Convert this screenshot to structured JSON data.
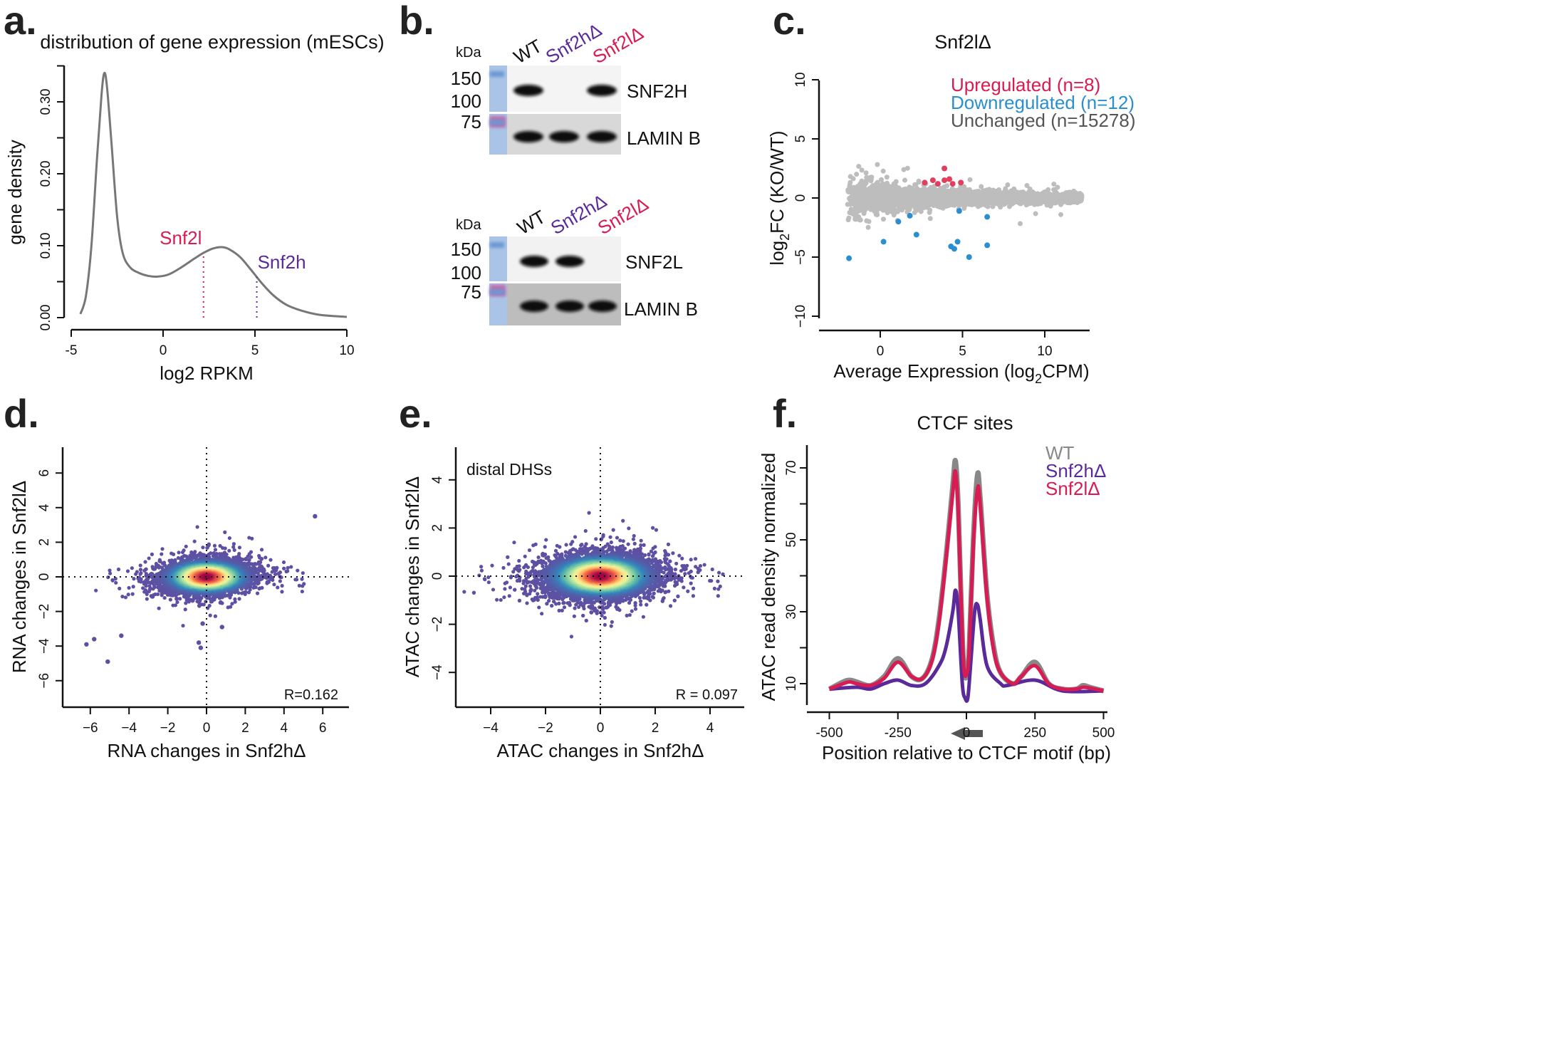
{
  "panels": {
    "a": {
      "letter": "a."
    },
    "b": {
      "letter": "b."
    },
    "c": {
      "letter": "c."
    },
    "d": {
      "letter": "d."
    },
    "e": {
      "letter": "e."
    },
    "f": {
      "letter": "f."
    }
  },
  "colors": {
    "snf2l": "#d81b52",
    "snf2h": "#5b2a9a",
    "down": "#2a8fd0",
    "unchanged": "#bdbdbd",
    "wt": "#888888"
  },
  "blots": {
    "unit_label": "kDa",
    "markers": [
      "150",
      "100",
      "75"
    ],
    "lanes": [
      "WT",
      "Snf2hΔ",
      "Snf2lΔ"
    ],
    "top": {
      "bands": [
        "SNF2H",
        "LAMIN B"
      ],
      "presence": [
        [
          1,
          0,
          1
        ],
        [
          1,
          1,
          1
        ]
      ]
    },
    "bottom": {
      "bands": [
        "SNF2L",
        "LAMIN B"
      ],
      "presence": [
        [
          1,
          1,
          0
        ],
        [
          1,
          1,
          1
        ]
      ]
    }
  },
  "chart_data": [
    {
      "id": "a",
      "type": "line",
      "title": "distribution of gene expression (mESCs)",
      "xlabel": "log2 RPKM",
      "ylabel": "gene density",
      "xlim": [
        -5,
        10
      ],
      "ylim": [
        0,
        0.35
      ],
      "xticks": [
        "-5",
        "0",
        "5",
        "10"
      ],
      "yticks": [
        "0.00",
        "0.10",
        "0.20",
        "0.30"
      ],
      "x": [
        -4.5,
        -4.2,
        -3.9,
        -3.6,
        -3.35,
        -3.2,
        -3.05,
        -2.8,
        -2.5,
        -2.2,
        -1.8,
        -1.3,
        -0.8,
        -0.3,
        0.3,
        1,
        1.7,
        2.2,
        2.7,
        3.2,
        3.6,
        4.2,
        4.8,
        5.4,
        6,
        6.7,
        7.5,
        8.5,
        10
      ],
      "y": [
        0.005,
        0.03,
        0.1,
        0.22,
        0.31,
        0.34,
        0.32,
        0.24,
        0.14,
        0.09,
        0.07,
        0.062,
        0.058,
        0.057,
        0.06,
        0.07,
        0.082,
        0.09,
        0.096,
        0.098,
        0.095,
        0.084,
        0.066,
        0.047,
        0.031,
        0.018,
        0.01,
        0.004,
        0.001
      ],
      "markers": [
        {
          "label": "Snf2l",
          "x": 2.2,
          "color": "#d81b52"
        },
        {
          "label": "Snf2h",
          "x": 5.1,
          "color": "#5b2a9a"
        }
      ]
    },
    {
      "id": "c",
      "type": "scatter",
      "title": "Snf2lΔ",
      "xlabel": "Average Expression (log",
      "xlabel_sub": "2",
      "xlabel_end": "CPM)",
      "ylabel": "log",
      "ylabel_sub": "2",
      "ylabel_end": "FC (KO/WT)",
      "xlim": [
        -2.5,
        13
      ],
      "ylim": [
        -10,
        10
      ],
      "xticks": [
        "0",
        "5",
        "10"
      ],
      "yticks": [
        "−10",
        "−5",
        "0",
        "5",
        "10"
      ],
      "legend": [
        "Upregulated (n=8)",
        "Downregulated (n=12)",
        "Unchanged (n=15278)"
      ],
      "legend_position": "top-right",
      "upregulated": [
        [
          2.7,
          1.3
        ],
        [
          3.2,
          1.5
        ],
        [
          3.5,
          1.2
        ],
        [
          3.9,
          2.5
        ],
        [
          3.9,
          1.5
        ],
        [
          4.2,
          1.6
        ],
        [
          4.4,
          1.2
        ],
        [
          4.9,
          1.3
        ]
      ],
      "downregulated": [
        [
          1.1,
          -2.0
        ],
        [
          1.8,
          -1.5
        ],
        [
          2.2,
          -3.1
        ],
        [
          0.2,
          -3.7
        ],
        [
          -1.9,
          -5.1
        ],
        [
          4.3,
          -4.1
        ],
        [
          4.5,
          -4.3
        ],
        [
          4.7,
          -3.7
        ],
        [
          5.4,
          -5.0
        ],
        [
          6.5,
          -1.6
        ],
        [
          6.5,
          -4.0
        ],
        [
          4.8,
          -1.1
        ]
      ]
    },
    {
      "id": "d",
      "type": "scatter",
      "xlabel": "RNA changes in Snf2hΔ",
      "ylabel": "RNA changes in Snf2lΔ",
      "xlim": [
        -7,
        7
      ],
      "ylim": [
        -7,
        7
      ],
      "xticks": [
        "−6",
        "−4",
        "−2",
        "0",
        "2",
        "4",
        "6"
      ],
      "yticks": [
        "−6",
        "−4",
        "−2",
        "0",
        "2",
        "4",
        "6"
      ],
      "annotation": "R=0.162",
      "outliers": [
        [
          5.6,
          3.5
        ],
        [
          -6.2,
          -3.9
        ],
        [
          -5.8,
          -3.6
        ],
        [
          -5.1,
          -4.9
        ],
        [
          -4.4,
          -3.4
        ],
        [
          -0.4,
          -3.8
        ],
        [
          -0.3,
          -4.1
        ],
        [
          0.8,
          -2.9
        ],
        [
          -0.2,
          -2.7
        ]
      ],
      "density_colored": true
    },
    {
      "id": "e",
      "type": "scatter",
      "xlabel": "ATAC changes in Snf2hΔ",
      "ylabel": "ATAC changes in Snf2lΔ",
      "xlim": [
        -5,
        5
      ],
      "ylim": [
        -5,
        5
      ],
      "xticks": [
        "−4",
        "−2",
        "0",
        "2",
        "4"
      ],
      "yticks": [
        "−4",
        "−2",
        "0",
        "2",
        "4"
      ],
      "subtitle": "distal DHSs",
      "annotation": "R = 0.097",
      "density_colored": true
    },
    {
      "id": "f",
      "type": "line",
      "title": "CTCF sites",
      "xlabel": "Position relative to CTCF motif (bp)",
      "ylabel": "ATAC read density normalized",
      "xlim": [
        -500,
        500
      ],
      "ylim": [
        5,
        75
      ],
      "xticks": [
        "-500",
        "-250",
        "0",
        "250",
        "500"
      ],
      "yticks": [
        "10",
        "30",
        "50",
        "70"
      ],
      "legend_position": "top-right",
      "series": [
        {
          "name": "WT",
          "color": "#888888",
          "x": [
            -500,
            -450,
            -425,
            -400,
            -350,
            -300,
            -250,
            -200,
            -160,
            -125,
            -100,
            -75,
            -50,
            -40,
            -30,
            -20,
            -10,
            0,
            10,
            25,
            40,
            50,
            75,
            100,
            125,
            170,
            200,
            250,
            300,
            350,
            400,
            425,
            450,
            500
          ],
          "y": [
            8.5,
            10.5,
            11,
            10.5,
            9.5,
            12,
            17,
            12,
            11.5,
            17,
            28,
            45,
            65,
            72,
            60,
            35,
            15,
            12,
            20,
            50,
            68,
            62,
            35,
            20,
            13,
            10,
            12,
            16,
            10,
            8.5,
            8.5,
            9.5,
            9,
            8
          ]
        },
        {
          "name": "Snf2hΔ",
          "color": "#5b2a9a",
          "x": [
            -500,
            -400,
            -350,
            -300,
            -250,
            -200,
            -150,
            -100,
            -75,
            -50,
            -40,
            -30,
            -15,
            -5,
            5,
            15,
            30,
            40,
            50,
            75,
            125,
            150,
            250,
            350,
            500
          ],
          "y": [
            8.5,
            9,
            8.5,
            10,
            11,
            9.5,
            10,
            15,
            20,
            30,
            36,
            30,
            10,
            6,
            6,
            15,
            30,
            32,
            28,
            15,
            10,
            9.5,
            11,
            8,
            8
          ]
        },
        {
          "name": "Snf2lΔ",
          "color": "#d81b52",
          "x": [
            -500,
            -450,
            -425,
            -400,
            -350,
            -300,
            -250,
            -200,
            -160,
            -125,
            -100,
            -75,
            -50,
            -40,
            -30,
            -20,
            -10,
            0,
            10,
            25,
            40,
            50,
            75,
            100,
            125,
            170,
            200,
            250,
            300,
            350,
            400,
            425,
            450,
            500
          ],
          "y": [
            8.5,
            10,
            10.5,
            10,
            9.5,
            11.5,
            16,
            12,
            11.5,
            16.5,
            27,
            44,
            63,
            69,
            58,
            34,
            15,
            12.5,
            19,
            48,
            64,
            60,
            34,
            19,
            13,
            10,
            12,
            15,
            10,
            8.5,
            8.5,
            9,
            8.8,
            8
          ]
        }
      ],
      "annotation_icon": "arrow-left-icon"
    }
  ]
}
